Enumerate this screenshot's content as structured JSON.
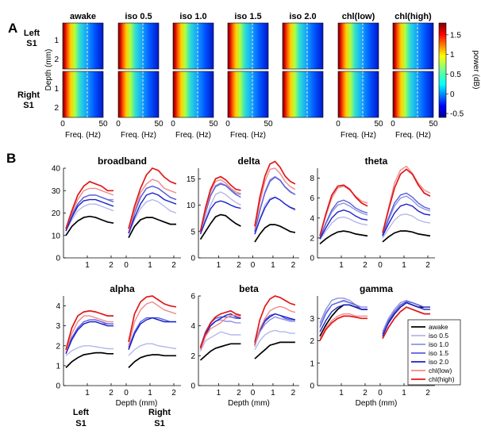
{
  "panel_a": {
    "letter": "A",
    "conditions": [
      "awake",
      "iso 0.5",
      "iso 1.0",
      "iso 1.5",
      "iso 2.0",
      "chl(low)",
      "chl(high)"
    ],
    "row_labels": [
      [
        "Left",
        "S1"
      ],
      [
        "Right",
        "S1"
      ]
    ],
    "depth_ticks": [
      "1",
      "2"
    ],
    "depth_label": "Depth (mm)",
    "freq_ticks": [
      "0",
      "50"
    ],
    "freq_label": "Freq. (Hz)",
    "colorbar_label": "power (dB)",
    "colorbar_ticks": [
      "1.5",
      "1",
      "0.5",
      "0",
      "-0.5"
    ]
  },
  "panel_b": {
    "letter": "B",
    "xlabel": "Depth (mm)",
    "left_label": [
      "Left",
      "S1"
    ],
    "right_label": [
      "Right",
      "S1"
    ]
  },
  "colors": {
    "awake": "#000000",
    "iso 0.5": "#b4b8ea",
    "iso 1.0": "#8d92e2",
    "iso 1.5": "#5a5fdc",
    "iso 2.0": "#1a20c8",
    "chl(low)": "#f08a8a",
    "chl(high)": "#e01818"
  },
  "chart_data": [
    {
      "type": "line",
      "title": "broadband",
      "ylim": [
        0,
        40
      ],
      "yticks": [
        0,
        10,
        20,
        30,
        40
      ],
      "xticks": [
        "1",
        "2",
        "0",
        "1",
        "2"
      ],
      "x": [
        0.1,
        0.35,
        0.6,
        0.85,
        1.1,
        1.35,
        1.6,
        1.85,
        2.1
      ],
      "left": [
        [
          10,
          14,
          16.5,
          18,
          18.5,
          18,
          17,
          16,
          15.5
        ],
        [
          12,
          17,
          21,
          23,
          24,
          24,
          23,
          22,
          21
        ],
        [
          12,
          19,
          24,
          27,
          28,
          28,
          27,
          26,
          26
        ],
        [
          12,
          19,
          24,
          27,
          28,
          28,
          27,
          26,
          25
        ],
        [
          12,
          18,
          23,
          25.5,
          26,
          26,
          25,
          24,
          23
        ],
        [
          13,
          20,
          26,
          30,
          31,
          31,
          30,
          29,
          28
        ],
        [
          13,
          21,
          28,
          32,
          34,
          33,
          32,
          30,
          30
        ]
      ],
      "right": [
        [
          9,
          14,
          17,
          18,
          18,
          17,
          16,
          15,
          15
        ],
        [
          10,
          17,
          22,
          25,
          26,
          25,
          23,
          21,
          20
        ],
        [
          11,
          20,
          27,
          31,
          32,
          31,
          29,
          27,
          26
        ],
        [
          11,
          20,
          27,
          31,
          32,
          31,
          29,
          27,
          26
        ],
        [
          11,
          18,
          24,
          28,
          29,
          28,
          26,
          25,
          24
        ],
        [
          12,
          21,
          29,
          33,
          35,
          34,
          31,
          30,
          29
        ],
        [
          13,
          23,
          31,
          37,
          40,
          39,
          36,
          34,
          33
        ]
      ]
    },
    {
      "type": "line",
      "title": "delta",
      "ylim": [
        0,
        17
      ],
      "yticks": [
        0,
        5,
        10,
        15
      ],
      "xticks": [
        "1",
        "2",
        "0",
        "1",
        "2"
      ],
      "x": [
        0.1,
        0.35,
        0.6,
        0.85,
        1.1,
        1.35,
        1.6,
        1.85,
        2.1
      ],
      "left": [
        [
          3.5,
          5,
          6.5,
          7.8,
          8.2,
          8,
          7.2,
          6.5,
          6
        ],
        [
          4.8,
          7.5,
          10,
          12,
          12.5,
          12,
          11.2,
          10.5,
          10
        ],
        [
          5,
          8.5,
          11.8,
          13.7,
          14.2,
          13.8,
          13,
          12.2,
          12
        ],
        [
          5,
          8.5,
          11.8,
          13.5,
          14,
          13.7,
          12.8,
          12,
          11.5
        ],
        [
          4.5,
          7,
          9.3,
          10.5,
          10.8,
          10.5,
          10,
          9.6,
          9.4
        ],
        [
          5,
          9,
          12.5,
          14.5,
          14.8,
          14.2,
          13.2,
          12.5,
          12.2
        ],
        [
          5,
          9.5,
          13,
          15,
          15.4,
          14.8,
          13.8,
          13,
          12.8
        ]
      ],
      "right": [
        [
          3,
          4.5,
          5.7,
          6.3,
          6.3,
          6,
          5.5,
          5,
          4.8
        ],
        [
          4.5,
          7.5,
          10,
          11.3,
          11.5,
          11,
          10.2,
          9.5,
          9
        ],
        [
          5,
          9,
          12.5,
          14.8,
          15.4,
          14.8,
          13.5,
          12.6,
          12
        ],
        [
          5,
          9,
          12.3,
          14.5,
          15.3,
          14.7,
          13.4,
          12.5,
          12
        ],
        [
          4.5,
          7.2,
          9.5,
          11,
          11.5,
          11,
          10.2,
          9.6,
          9.2
        ],
        [
          5.5,
          10.5,
          14.5,
          16.8,
          17,
          16,
          14.5,
          13.5,
          13
        ],
        [
          6,
          11.5,
          15.5,
          17.8,
          18.3,
          17.2,
          15.5,
          14.5,
          14
        ]
      ]
    },
    {
      "type": "line",
      "title": "theta",
      "ylim": [
        0,
        9
      ],
      "yticks": [
        0,
        2,
        4,
        6,
        8
      ],
      "xticks": [
        "1",
        "2",
        "0",
        "1",
        "2"
      ],
      "x": [
        0.1,
        0.35,
        0.6,
        0.85,
        1.1,
        1.35,
        1.6,
        1.85,
        2.1
      ],
      "left": [
        [
          1.4,
          1.9,
          2.3,
          2.6,
          2.7,
          2.6,
          2.4,
          2.3,
          2.2
        ],
        [
          1.8,
          2.7,
          3.5,
          4,
          4.1,
          3.9,
          3.6,
          3.4,
          3.3
        ],
        [
          2,
          3.4,
          4.6,
          5.3,
          5.5,
          5.2,
          4.8,
          4.5,
          4.3
        ],
        [
          2,
          3.5,
          4.8,
          5.6,
          5.8,
          5.5,
          5,
          4.7,
          4.5
        ],
        [
          1.9,
          3,
          4,
          4.6,
          4.8,
          4.6,
          4.2,
          3.9,
          3.8
        ],
        [
          2.2,
          4.2,
          6,
          7,
          7.2,
          6.8,
          6.2,
          5.7,
          5.5
        ],
        [
          2.2,
          4.4,
          6.3,
          7.2,
          7.3,
          6.9,
          6.1,
          5.5,
          5.2
        ]
      ],
      "right": [
        [
          1.6,
          2.1,
          2.5,
          2.7,
          2.7,
          2.6,
          2.4,
          2.3,
          2.2
        ],
        [
          2,
          2.9,
          3.8,
          4.3,
          4.4,
          4.2,
          3.8,
          3.6,
          3.5
        ],
        [
          2.2,
          3.8,
          5.2,
          6,
          6.2,
          5.8,
          5.2,
          4.9,
          4.7
        ],
        [
          2.3,
          4,
          5.5,
          6.3,
          6.5,
          6.1,
          5.5,
          5.1,
          4.9
        ],
        [
          2.2,
          3.4,
          4.5,
          5.2,
          5.4,
          5.2,
          4.7,
          4.4,
          4.3
        ],
        [
          2.5,
          5,
          7.5,
          8.8,
          9.2,
          8.5,
          7.5,
          6.8,
          6.5
        ],
        [
          2.5,
          4.8,
          7,
          8.4,
          8.9,
          8.4,
          7.3,
          6.5,
          6.2
        ]
      ]
    },
    {
      "type": "line",
      "title": "alpha",
      "ylim": [
        0,
        4.5
      ],
      "yticks": [
        0,
        1,
        2,
        3,
        4
      ],
      "xticks": [
        "1",
        "2",
        "0",
        "1",
        "2"
      ],
      "x": [
        0.1,
        0.35,
        0.6,
        0.85,
        1.1,
        1.35,
        1.6,
        1.85,
        2.1
      ],
      "left": [
        [
          0.9,
          1.2,
          1.4,
          1.55,
          1.6,
          1.65,
          1.65,
          1.6,
          1.6
        ],
        [
          1.5,
          1.75,
          1.9,
          2,
          2,
          1.95,
          1.9,
          1.85,
          1.85
        ],
        [
          1.6,
          2.3,
          2.8,
          3.1,
          3.2,
          3.2,
          3.1,
          3.1,
          3.1
        ],
        [
          1.7,
          2.4,
          2.9,
          3.2,
          3.3,
          3.3,
          3.2,
          3.1,
          3.1
        ],
        [
          1.6,
          2.3,
          2.8,
          3.1,
          3.2,
          3.2,
          3.1,
          3,
          3
        ],
        [
          1.7,
          2.6,
          3.2,
          3.5,
          3.5,
          3.4,
          3.3,
          3.2,
          3.2
        ],
        [
          1.8,
          2.9,
          3.5,
          3.7,
          3.75,
          3.7,
          3.6,
          3.5,
          3.5
        ]
      ],
      "right": [
        [
          0.9,
          1.2,
          1.4,
          1.5,
          1.55,
          1.55,
          1.5,
          1.5,
          1.5
        ],
        [
          1.5,
          1.8,
          2,
          2.1,
          2.1,
          2,
          1.95,
          1.9,
          1.85
        ],
        [
          1.8,
          2.6,
          3.1,
          3.3,
          3.4,
          3.3,
          3.2,
          3.2,
          3.2
        ],
        [
          1.9,
          2.7,
          3.2,
          3.4,
          3.4,
          3.4,
          3.3,
          3.2,
          3.2
        ],
        [
          1.8,
          2.6,
          3.1,
          3.3,
          3.4,
          3.3,
          3.2,
          3.2,
          3.2
        ],
        [
          2,
          3.2,
          3.8,
          4.1,
          4.2,
          4,
          3.8,
          3.7,
          3.6
        ],
        [
          2.2,
          3.6,
          4.2,
          4.45,
          4.5,
          4.3,
          4.1,
          4,
          3.95
        ]
      ]
    },
    {
      "type": "line",
      "title": "beta",
      "ylim": [
        0,
        6
      ],
      "yticks": [
        0,
        2,
        4,
        6
      ],
      "xticks": [
        "1",
        "2",
        "0",
        "1",
        "2"
      ],
      "x": [
        0.1,
        0.35,
        0.6,
        0.85,
        1.1,
        1.35,
        1.6,
        1.85,
        2.1
      ],
      "left": [
        [
          1.7,
          2,
          2.3,
          2.5,
          2.6,
          2.7,
          2.8,
          2.8,
          2.8
        ],
        [
          2.3,
          3,
          3.2,
          3.4,
          3.6,
          3.5,
          3.4,
          3.4,
          3.4
        ],
        [
          2.6,
          3.5,
          4.1,
          4.3,
          4.4,
          4.3,
          4.3,
          4.2,
          4.2
        ],
        [
          2.6,
          3.6,
          4.2,
          4.5,
          4.6,
          4.6,
          4.6,
          4.5,
          4.5
        ],
        [
          2.5,
          3.4,
          4,
          4.3,
          4.5,
          4.7,
          4.8,
          4.6,
          4.5
        ],
        [
          2.4,
          3.3,
          3.8,
          4,
          4.2,
          4.5,
          4.7,
          4.7,
          4.6
        ],
        [
          2.5,
          3.5,
          4.2,
          4.6,
          4.8,
          4.9,
          5,
          4.8,
          4.7
        ]
      ],
      "right": [
        [
          1.8,
          2.1,
          2.4,
          2.7,
          2.8,
          2.9,
          2.9,
          2.9,
          2.9
        ],
        [
          2.4,
          3,
          3.4,
          3.6,
          3.7,
          3.6,
          3.6,
          3.5,
          3.5
        ],
        [
          2.7,
          3.6,
          4.1,
          4.4,
          4.6,
          4.5,
          4.4,
          4.3,
          4.3
        ],
        [
          2.8,
          3.8,
          4.4,
          4.7,
          4.8,
          4.7,
          4.5,
          4.4,
          4.4
        ],
        [
          2.7,
          3.7,
          4.3,
          4.6,
          4.8,
          4.7,
          4.6,
          4.5,
          4.4
        ],
        [
          2.6,
          3.8,
          4.5,
          5,
          5.2,
          5.3,
          5.2,
          5,
          4.9
        ],
        [
          2.9,
          4.4,
          5.3,
          5.8,
          6,
          5.9,
          5.7,
          5.5,
          5.4
        ]
      ]
    },
    {
      "type": "line",
      "title": "gamma",
      "ylim": [
        0,
        4
      ],
      "yticks": [
        0,
        1,
        2,
        3
      ],
      "xticks": [
        "1",
        "2",
        "0",
        "1",
        "2"
      ],
      "x": [
        0.1,
        0.35,
        0.6,
        0.85,
        1.1,
        1.35,
        1.6,
        1.85,
        2.1
      ],
      "left": [
        [
          2.2,
          2.7,
          3.1,
          3.4,
          3.6,
          3.6,
          3.5,
          3.4,
          3.4
        ],
        [
          2.7,
          3.3,
          3.6,
          3.7,
          3.75,
          3.7,
          3.6,
          3.5,
          3.5
        ],
        [
          2.8,
          3.4,
          3.8,
          3.9,
          3.9,
          3.8,
          3.6,
          3.5,
          3.5
        ],
        [
          2.6,
          3.2,
          3.6,
          3.7,
          3.8,
          3.7,
          3.6,
          3.4,
          3.4
        ],
        [
          2.4,
          2.9,
          3.3,
          3.5,
          3.6,
          3.6,
          3.5,
          3.4,
          3.4
        ],
        [
          2.1,
          2.6,
          2.9,
          3.1,
          3.2,
          3.2,
          3.1,
          3.1,
          3.1
        ],
        [
          2,
          2.5,
          2.8,
          3,
          3.1,
          3.1,
          3.05,
          3,
          3
        ]
      ],
      "right": [
        [
          2.3,
          2.8,
          3.2,
          3.5,
          3.7,
          3.6,
          3.5,
          3.5,
          3.5
        ],
        [
          2.3,
          2.9,
          3.3,
          3.6,
          3.7,
          3.6,
          3.5,
          3.4,
          3.4
        ],
        [
          2.4,
          3,
          3.4,
          3.7,
          3.8,
          3.7,
          3.6,
          3.5,
          3.5
        ],
        [
          2.3,
          2.9,
          3.3,
          3.6,
          3.75,
          3.7,
          3.6,
          3.5,
          3.5
        ],
        [
          2.2,
          2.8,
          3.2,
          3.5,
          3.7,
          3.6,
          3.5,
          3.4,
          3.4
        ],
        [
          2.1,
          2.6,
          3,
          3.3,
          3.5,
          3.4,
          3.3,
          3.2,
          3.2
        ],
        [
          2.1,
          2.6,
          3,
          3.3,
          3.5,
          3.4,
          3.3,
          3.2,
          3.2
        ]
      ]
    }
  ],
  "legend": [
    "awake",
    "iso 0.5",
    "iso 1.0",
    "iso 1.5",
    "iso 2.0",
    "chl(low)",
    "chl(high)"
  ]
}
